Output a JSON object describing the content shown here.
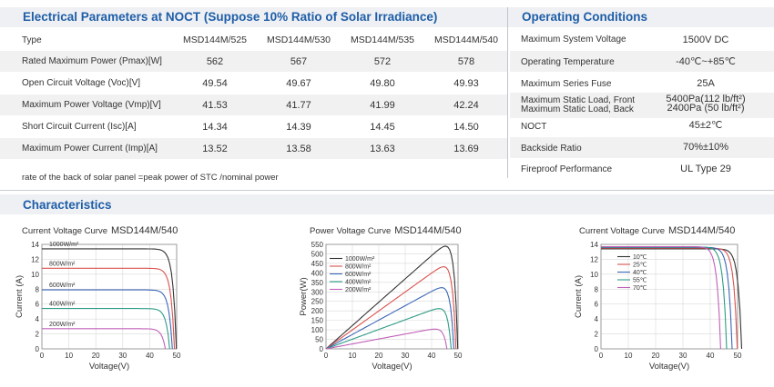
{
  "electrical": {
    "title": "Electrical Parameters at NOCT (Suppose 10% Ratio of Solar Irradiance)",
    "type_label": "Type",
    "models": [
      "MSD144M/525",
      "MSD144M/530",
      "MSD144M/535",
      "MSD144M/540"
    ],
    "rows": [
      {
        "label": "Rated Maximum Power (Pmax)[W]",
        "values": [
          "562",
          "567",
          "572",
          "578"
        ]
      },
      {
        "label": "Open Circuit Voltage (Voc)[V]",
        "values": [
          "49.54",
          "49.67",
          "49.80",
          "49.93"
        ]
      },
      {
        "label": "Maximum Power Voltage (Vmp)[V]",
        "values": [
          "41.53",
          "41.77",
          "41.99",
          "42.24"
        ]
      },
      {
        "label": "Short Circuit Current (Isc)[A]",
        "values": [
          "14.34",
          "14.39",
          "14.45",
          "14.50"
        ]
      },
      {
        "label": "Maximum Power Current (Imp)[A]",
        "values": [
          "13.52",
          "13.58",
          "13.63",
          "13.69"
        ]
      }
    ],
    "note": "rate of the back of solar panel =peak power of STC /nominal power"
  },
  "operating": {
    "title": "Operating Conditions",
    "rows": [
      {
        "label": "Maximum System Voltage",
        "value": "1500V DC"
      },
      {
        "label": "Operating Temperature",
        "value": "-40℃~+85℃"
      },
      {
        "label": "Maximum Series Fuse",
        "value": "25A"
      },
      {
        "label": "Maximum Static Load, Front",
        "label2": "Maximum Static Load, Back",
        "value": "5400Pa(112 lb/ft²)",
        "value2": "2400Pa (50 lb/ft²)"
      },
      {
        "label": "NOCT",
        "value": "45±2℃"
      },
      {
        "label": "Backside Ratio",
        "value": "70%±10%"
      },
      {
        "label": "Fireproof Performance",
        "value": "UL Type 29"
      }
    ]
  },
  "characteristics": {
    "title": "Characteristics"
  },
  "chart_data": [
    {
      "type": "line",
      "title": "Current Voltage Curve",
      "model": "MSD144M/540",
      "xlabel": "Voltage(V)",
      "ylabel": "Current (A)",
      "xlim": [
        0,
        50
      ],
      "ylim": [
        0,
        14
      ],
      "xticks": [
        "0",
        "10",
        "20",
        "30",
        "40",
        "50"
      ],
      "yticks": [
        "0",
        "2",
        "4",
        "6",
        "8",
        "10",
        "12",
        "14"
      ],
      "series": [
        {
          "name": "1000W/m²",
          "isc": 13.4,
          "voc": 49.9,
          "color": "#333333"
        },
        {
          "name": "800W/m²",
          "isc": 10.8,
          "voc": 49.2,
          "color": "#d9534f"
        },
        {
          "name": "600W/m²",
          "isc": 7.9,
          "voc": 48.4,
          "color": "#3a66b8"
        },
        {
          "name": "400W/m²",
          "isc": 5.4,
          "voc": 47.4,
          "color": "#2f9c86"
        },
        {
          "name": "200W/m²",
          "isc": 2.7,
          "voc": 45.8,
          "color": "#c060b8"
        }
      ]
    },
    {
      "type": "line",
      "title": "Power Voltage Curve",
      "model": "MSD144M/540",
      "xlabel": "Voltage(V)",
      "ylabel": "Power(W)",
      "xlim": [
        0,
        50
      ],
      "ylim": [
        0,
        550
      ],
      "xticks": [
        "0",
        "10",
        "20",
        "30",
        "40",
        "50"
      ],
      "yticks": [
        "0",
        "50",
        "100",
        "150",
        "200",
        "250",
        "300",
        "350",
        "400",
        "450",
        "500",
        "550"
      ],
      "series": [
        {
          "name": "1000W/m²",
          "vmp": 41.5,
          "pmax": 540,
          "voc": 49.9,
          "color": "#333333"
        },
        {
          "name": "800W/m²",
          "vmp": 41.0,
          "pmax": 432,
          "voc": 49.2,
          "color": "#d9534f"
        },
        {
          "name": "600W/m²",
          "vmp": 40.5,
          "pmax": 322,
          "voc": 48.4,
          "color": "#3a66b8"
        },
        {
          "name": "400W/m²",
          "vmp": 40.0,
          "pmax": 212,
          "voc": 47.4,
          "color": "#2f9c86"
        },
        {
          "name": "200W/m²",
          "vmp": 39.0,
          "pmax": 104,
          "voc": 45.8,
          "color": "#c060b8"
        }
      ]
    },
    {
      "type": "line",
      "title": "Current Voltage Curve",
      "model": "MSD144M/540",
      "xlabel": "Voltage(V)",
      "ylabel": "Current (A)",
      "xlim": [
        0,
        50
      ],
      "ylim": [
        0,
        14
      ],
      "xticks": [
        "0",
        "10",
        "20",
        "30",
        "40",
        "50"
      ],
      "yticks": [
        "0",
        "2",
        "4",
        "6",
        "8",
        "10",
        "12",
        "14"
      ],
      "series": [
        {
          "name": "10℃",
          "isc": 13.4,
          "voc": 51.5,
          "color": "#333333"
        },
        {
          "name": "25℃",
          "isc": 13.5,
          "voc": 49.9,
          "color": "#d9534f"
        },
        {
          "name": "40℃",
          "isc": 13.6,
          "voc": 48.0,
          "color": "#3a66b8"
        },
        {
          "name": "55℃",
          "isc": 13.65,
          "voc": 46.0,
          "color": "#2f9c86"
        },
        {
          "name": "70℃",
          "isc": 13.7,
          "voc": 43.8,
          "color": "#c060b8"
        }
      ]
    }
  ]
}
